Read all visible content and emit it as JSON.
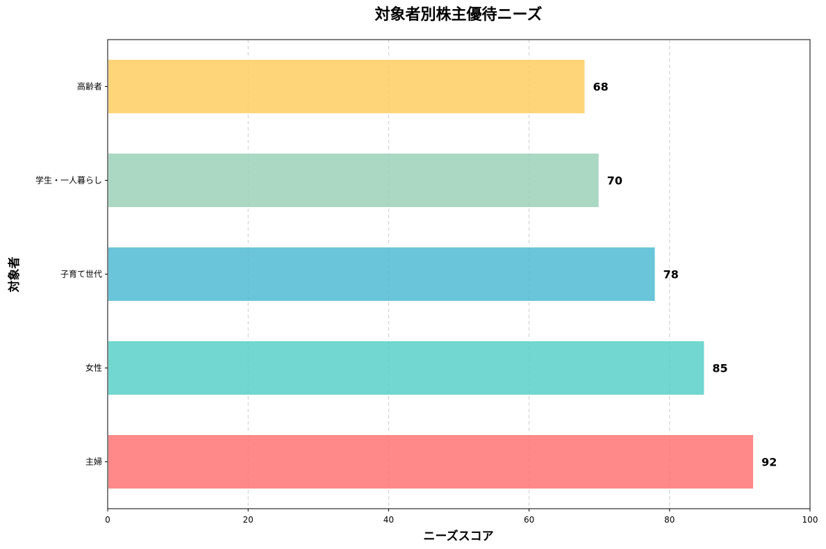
{
  "chart_data": {
    "type": "bar",
    "orientation": "horizontal",
    "title": "対象者別株主優待ニーズ",
    "xlabel": "ニーズスコア",
    "ylabel": "対象者",
    "categories": [
      "主婦",
      "女性",
      "子育て世代",
      "学生・一人暮らし",
      "高齢者"
    ],
    "values": [
      92,
      85,
      78,
      70,
      68
    ],
    "value_labels": [
      "92",
      "85",
      "78",
      "70",
      "68"
    ],
    "colors": [
      "#FF6B6B",
      "#4ECDC4",
      "#45B7D1",
      "#96CEB4",
      "#FECA57"
    ],
    "xlim": [
      0,
      100
    ],
    "xticks": [
      "0",
      "20",
      "40",
      "60",
      "80",
      "100"
    ],
    "grid": "x-dashed",
    "legend": "none"
  }
}
